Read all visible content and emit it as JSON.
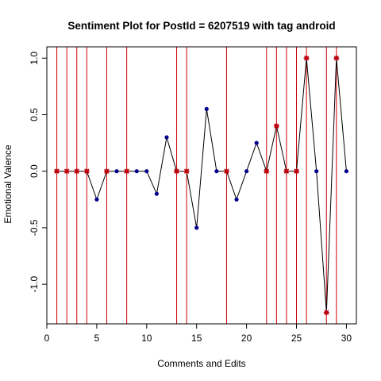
{
  "chart_data": {
    "type": "line",
    "title": "Sentiment Plot for PostId =  6207519  with tag  android",
    "xlabel": "Comments and Edits",
    "ylabel": "Emotional Valence",
    "xlim": [
      0,
      31
    ],
    "ylim": [
      -1.35,
      1.1
    ],
    "x_ticks": [
      0,
      5,
      10,
      15,
      20,
      25,
      30
    ],
    "y_ticks": [
      -1.0,
      -0.5,
      0.0,
      0.5,
      1.0
    ],
    "x_tick_labels": [
      "0",
      "5",
      "10",
      "15",
      "20",
      "25",
      "30"
    ],
    "y_tick_labels": [
      "-1.0",
      "-0.5",
      "0.0",
      "0.5",
      "1.0"
    ],
    "x": [
      1,
      2,
      3,
      4,
      5,
      6,
      7,
      8,
      9,
      10,
      11,
      12,
      13,
      14,
      15,
      16,
      17,
      18,
      19,
      20,
      21,
      22,
      23,
      24,
      25,
      26,
      27,
      28,
      29,
      30
    ],
    "values": [
      0,
      0,
      0,
      0,
      -0.25,
      0,
      0,
      0,
      0,
      0,
      -0.2,
      0.3,
      0,
      0,
      -0.5,
      0.55,
      0,
      0,
      -0.25,
      0,
      0.25,
      0,
      0.4,
      0,
      0,
      1.0,
      0,
      -1.25,
      1.0,
      0
    ],
    "edit_positions": [
      1,
      2,
      3,
      4,
      6,
      8,
      13,
      14,
      18,
      22,
      23,
      24,
      25,
      26,
      28,
      29
    ],
    "colors": {
      "line": "#000000",
      "point": "#00008b",
      "edit_line": "#cc0000",
      "edit_marker": "#cc0000"
    }
  }
}
